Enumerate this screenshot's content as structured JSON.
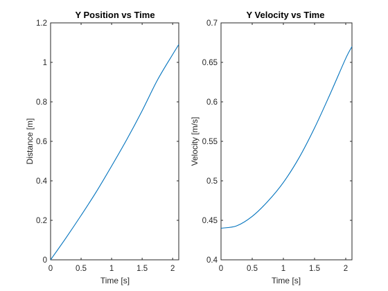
{
  "figure": {
    "background": "#ffffff"
  },
  "chart_data": [
    {
      "type": "line",
      "title": "Y Position vs Time",
      "xlabel": "Time [s]",
      "ylabel": "Distance [m]",
      "xlim": [
        0,
        2.1
      ],
      "ylim": [
        0,
        1.2
      ],
      "xticks": [
        "0",
        "0.5",
        "1",
        "1.5",
        "2"
      ],
      "yticks": [
        "0",
        "0.2",
        "0.4",
        "0.6",
        "0.8",
        "1",
        "1.2"
      ],
      "grid": false,
      "series": [
        {
          "color": "#0072BD",
          "x": [
            0,
            0.25,
            0.5,
            0.75,
            1.0,
            1.25,
            1.5,
            1.75,
            2.0,
            2.1
          ],
          "y": [
            0,
            0.11,
            0.225,
            0.345,
            0.475,
            0.61,
            0.755,
            0.91,
            1.04,
            1.09
          ]
        }
      ]
    },
    {
      "type": "line",
      "title": "Y Velocity vs Time",
      "xlabel": "Time [s]",
      "ylabel": "Velocity [m/s]",
      "xlim": [
        0,
        2.1
      ],
      "ylim": [
        0.4,
        0.7
      ],
      "xticks": [
        "0",
        "0.5",
        "1",
        "1.5",
        "2"
      ],
      "yticks": [
        "0.4",
        "0.45",
        "0.5",
        "0.55",
        "0.6",
        "0.65",
        "0.7"
      ],
      "grid": false,
      "series": [
        {
          "color": "#0072BD",
          "x": [
            0,
            0.25,
            0.5,
            0.75,
            1.0,
            1.25,
            1.5,
            1.75,
            2.0,
            2.1
          ],
          "y": [
            0.44,
            0.443,
            0.455,
            0.474,
            0.498,
            0.529,
            0.567,
            0.61,
            0.655,
            0.67
          ]
        }
      ]
    }
  ]
}
